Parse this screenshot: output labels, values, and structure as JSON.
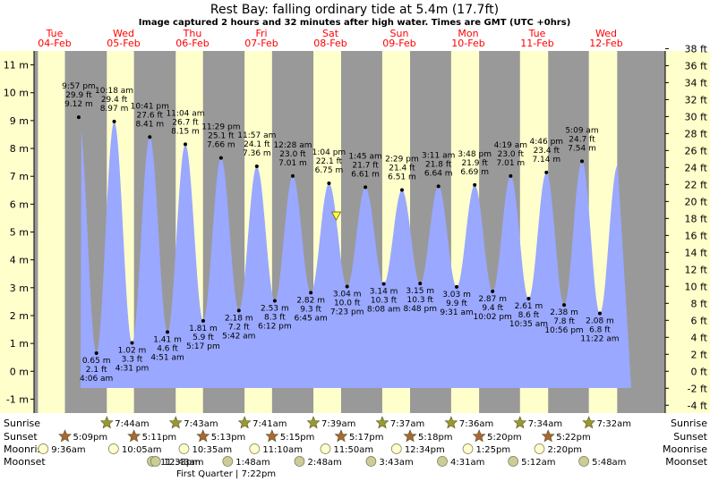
{
  "title": "Rest Bay: falling  ordinary tide at 5.4m (17.7ft)",
  "subtitle": "Image captured 2 hours and 32 minutes after high water. Times are GMT (UTC +0hrs)",
  "current_height_m": 5.4,
  "colors": {
    "day": "#ffffcc",
    "night": "#999999",
    "tide": "#9aa8ff",
    "day_label": "#ff0000",
    "star": "#999933",
    "sunset_star": "#aa6633",
    "moon": "#ffffcc",
    "moonset": "#cccc99"
  },
  "chart_data": {
    "type": "area",
    "ylim_m": [
      -1.5,
      11.5
    ],
    "ylim_ft": [
      -4,
      38
    ],
    "y_ticks_m": [
      -1,
      0,
      1,
      2,
      3,
      4,
      5,
      6,
      7,
      8,
      9,
      10,
      11
    ],
    "y_ticks_ft": [
      -4,
      -2,
      0,
      2,
      4,
      6,
      8,
      10,
      12,
      14,
      16,
      18,
      20,
      22,
      24,
      26,
      28,
      30,
      32,
      34,
      36,
      38
    ],
    "y_unit_m": "m",
    "y_unit_ft": "ft",
    "days": [
      {
        "name": "Tue",
        "date": "04-Feb"
      },
      {
        "name": "Wed",
        "date": "05-Feb"
      },
      {
        "name": "Thu",
        "date": "06-Feb"
      },
      {
        "name": "Fri",
        "date": "07-Feb"
      },
      {
        "name": "Sat",
        "date": "08-Feb"
      },
      {
        "name": "Sun",
        "date": "09-Feb"
      },
      {
        "name": "Mon",
        "date": "10-Feb"
      },
      {
        "name": "Tue",
        "date": "11-Feb"
      },
      {
        "name": "Wed",
        "date": "12-Feb"
      }
    ],
    "tides": [
      {
        "type": "high",
        "day": 0,
        "time": "9:57 pm",
        "ft": "29.9 ft",
        "m": 9.12
      },
      {
        "type": "low",
        "day": 1,
        "time": "4:06 am",
        "ft": "2.1 ft",
        "m": 0.65
      },
      {
        "type": "high",
        "day": 1,
        "time": "10:18 am",
        "ft": "29.4 ft",
        "m": 8.97
      },
      {
        "type": "low",
        "day": 1,
        "time": "4:31 pm",
        "ft": "3.3 ft",
        "m": 1.02
      },
      {
        "type": "high",
        "day": 1,
        "time": "10:41 pm",
        "ft": "27.6 ft",
        "m": 8.41
      },
      {
        "type": "low",
        "day": 2,
        "time": "4:51 am",
        "ft": "4.6 ft",
        "m": 1.41
      },
      {
        "type": "high",
        "day": 2,
        "time": "11:04 am",
        "ft": "26.7 ft",
        "m": 8.15
      },
      {
        "type": "low",
        "day": 2,
        "time": "5:17 pm",
        "ft": "5.9 ft",
        "m": 1.81
      },
      {
        "type": "high",
        "day": 2,
        "time": "11:29 pm",
        "ft": "25.1 ft",
        "m": 7.66
      },
      {
        "type": "low",
        "day": 3,
        "time": "5:42 am",
        "ft": "7.2 ft",
        "m": 2.18
      },
      {
        "type": "high",
        "day": 3,
        "time": "11:57 am",
        "ft": "24.1 ft",
        "m": 7.36
      },
      {
        "type": "low",
        "day": 3,
        "time": "6:12 pm",
        "ft": "8.3 ft",
        "m": 2.53
      },
      {
        "type": "high",
        "day": 4,
        "time": "12:28 am",
        "ft": "23.0 ft",
        "m": 7.01
      },
      {
        "type": "low",
        "day": 4,
        "time": "6:45 am",
        "ft": "9.3 ft",
        "m": 2.82
      },
      {
        "type": "high",
        "day": 4,
        "time": "1:04 pm",
        "ft": "22.1 ft",
        "m": 6.75
      },
      {
        "type": "low",
        "day": 4,
        "time": "7:23 pm",
        "ft": "10.0 ft",
        "m": 3.04
      },
      {
        "type": "high",
        "day": 5,
        "time": "1:45 am",
        "ft": "21.7 ft",
        "m": 6.61
      },
      {
        "type": "low",
        "day": 5,
        "time": "8:08 am",
        "ft": "10.3 ft",
        "m": 3.14
      },
      {
        "type": "high",
        "day": 5,
        "time": "2:29 pm",
        "ft": "21.4 ft",
        "m": 6.51
      },
      {
        "type": "low",
        "day": 5,
        "time": "8:48 pm",
        "ft": "10.3 ft",
        "m": 3.15
      },
      {
        "type": "high",
        "day": 6,
        "time": "3:11 am",
        "ft": "21.8 ft",
        "m": 6.64
      },
      {
        "type": "low",
        "day": 6,
        "time": "9:31 am",
        "ft": "9.9 ft",
        "m": 3.03
      },
      {
        "type": "high",
        "day": 6,
        "time": "3:48 pm",
        "ft": "21.9 ft",
        "m": 6.69
      },
      {
        "type": "low",
        "day": 6,
        "time": "10:02 pm",
        "ft": "9.4 ft",
        "m": 2.87
      },
      {
        "type": "high",
        "day": 7,
        "time": "4:19 am",
        "ft": "23.0 ft",
        "m": 7.01
      },
      {
        "type": "low",
        "day": 7,
        "time": "10:35 am",
        "ft": "8.6 ft",
        "m": 2.61
      },
      {
        "type": "high",
        "day": 7,
        "time": "4:46 pm",
        "ft": "23.4 ft",
        "m": 7.14
      },
      {
        "type": "low",
        "day": 7,
        "time": "10:56 pm",
        "ft": "7.8 ft",
        "m": 2.38
      },
      {
        "type": "high",
        "day": 8,
        "time": "5:09 am",
        "ft": "24.7 ft",
        "m": 7.54
      },
      {
        "type": "low",
        "day": 8,
        "time": "11:22 am",
        "ft": "6.8 ft",
        "m": 2.08
      }
    ],
    "now": {
      "day": 4,
      "time": "3:36 pm",
      "m": 5.4
    }
  },
  "rows": {
    "sunrise": {
      "label": "Sunrise",
      "events": [
        {
          "day": 1,
          "time": "7:44am"
        },
        {
          "day": 2,
          "time": "7:43am"
        },
        {
          "day": 3,
          "time": "7:41am"
        },
        {
          "day": 4,
          "time": "7:39am"
        },
        {
          "day": 5,
          "time": "7:37am"
        },
        {
          "day": 6,
          "time": "7:36am"
        },
        {
          "day": 7,
          "time": "7:34am"
        },
        {
          "day": 8,
          "time": "7:32am"
        }
      ]
    },
    "sunset": {
      "label": "Sunset",
      "events": [
        {
          "day": 0,
          "time": "5:09pm"
        },
        {
          "day": 1,
          "time": "5:11pm"
        },
        {
          "day": 2,
          "time": "5:13pm"
        },
        {
          "day": 3,
          "time": "5:15pm"
        },
        {
          "day": 4,
          "time": "5:17pm"
        },
        {
          "day": 5,
          "time": "5:18pm"
        },
        {
          "day": 6,
          "time": "5:20pm"
        },
        {
          "day": 7,
          "time": "5:22pm"
        }
      ]
    },
    "moonrise": {
      "label": "Moonrise",
      "events": [
        {
          "day": 0,
          "time": "9:36am"
        },
        {
          "day": 1,
          "time": "10:05am"
        },
        {
          "day": 2,
          "time": "10:35am"
        },
        {
          "day": 3,
          "time": "11:10am"
        },
        {
          "day": 4,
          "time": "11:50am"
        },
        {
          "day": 5,
          "time": "12:34pm"
        },
        {
          "day": 6,
          "time": "1:25pm"
        },
        {
          "day": 7,
          "time": "2:20pm"
        }
      ]
    },
    "moonset": {
      "label": "Moonset",
      "events": [
        {
          "day": 1,
          "time": "11:33pm"
        },
        {
          "day": 2,
          "time": "12:43am"
        },
        {
          "day": 3,
          "time": "1:48am"
        },
        {
          "day": 4,
          "time": "2:48am"
        },
        {
          "day": 5,
          "time": "3:43am"
        },
        {
          "day": 6,
          "time": "4:31am"
        },
        {
          "day": 7,
          "time": "5:12am"
        },
        {
          "day": 8,
          "time": "5:48am"
        }
      ]
    }
  },
  "moon_phase": "First Quarter | 7:22pm"
}
